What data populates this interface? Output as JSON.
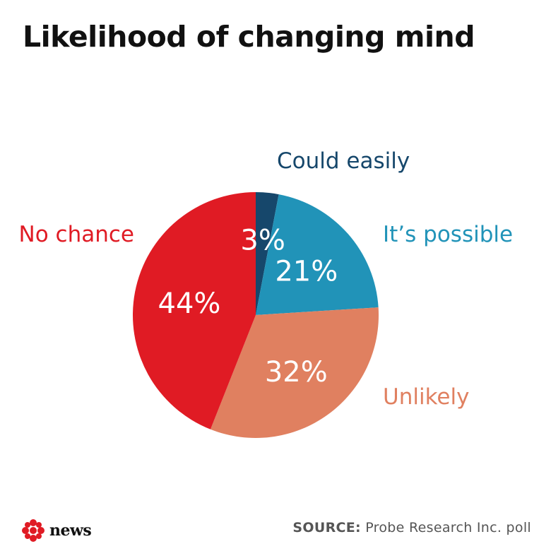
{
  "title": "Likelihood of changing mind",
  "source": {
    "label": "SOURCE:",
    "text": " Probe Research Inc. poll"
  },
  "logo": {
    "word": "news",
    "mark": "cbc-gem-icon"
  },
  "colors": {
    "could_easily": "#16476b",
    "its_possible": "#2193b8",
    "unlikely": "#e08060",
    "no_chance": "#e01b24"
  },
  "chart_data": {
    "type": "pie",
    "title": "Likelihood of changing mind",
    "start": "top",
    "direction": "clockwise",
    "slices": [
      {
        "label": "Could easily",
        "value": 3,
        "value_label": "3%",
        "color": "#16476b"
      },
      {
        "label": "It’s possible",
        "value": 21,
        "value_label": "21%",
        "color": "#2193b8"
      },
      {
        "label": "Unlikely",
        "value": 32,
        "value_label": "32%",
        "color": "#e08060"
      },
      {
        "label": "No chance",
        "value": 44,
        "value_label": "44%",
        "color": "#e01b24"
      }
    ]
  }
}
